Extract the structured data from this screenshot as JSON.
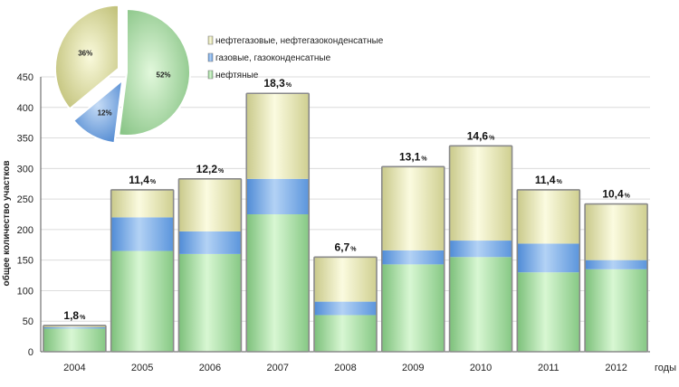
{
  "chart_data": [
    {
      "type": "bar",
      "stacked": true,
      "categories": [
        "2004",
        "2005",
        "2006",
        "2007",
        "2008",
        "2009",
        "2010",
        "2011",
        "2012"
      ],
      "xlabel": "годы",
      "ylabel": "общее количество участков",
      "ylim": [
        0,
        450
      ],
      "yticks": [
        0,
        50,
        100,
        150,
        200,
        250,
        300,
        350,
        400,
        450
      ],
      "grid": true,
      "series": [
        {
          "name": "нефтяные",
          "color": "#a8e6a0",
          "values": [
            38,
            165,
            160,
            225,
            60,
            143,
            155,
            130,
            135
          ]
        },
        {
          "name": "газовые, газоконденсатные",
          "color": "#7aaee8",
          "values": [
            2,
            55,
            37,
            58,
            22,
            23,
            27,
            47,
            15
          ]
        },
        {
          "name": "нефтегазовые, нефтегазоконденсатные",
          "color": "#e6e6aa",
          "values": [
            3,
            45,
            86,
            140,
            73,
            137,
            155,
            88,
            92
          ]
        }
      ],
      "bar_labels": [
        {
          "number": "1,8",
          "unit": "%"
        },
        {
          "number": "11,4",
          "unit": "%"
        },
        {
          "number": "12,2",
          "unit": "%"
        },
        {
          "number": "18,3",
          "unit": "%"
        },
        {
          "number": "6,7",
          "unit": "%"
        },
        {
          "number": "13,1",
          "unit": "%"
        },
        {
          "number": "14,6",
          "unit": "%"
        },
        {
          "number": "11,4",
          "unit": "%"
        },
        {
          "number": "10,4",
          "unit": "%"
        }
      ]
    },
    {
      "type": "pie",
      "slices": [
        {
          "name": "нефтяные",
          "value": 52,
          "label": "52%",
          "color": "#a8e6a0",
          "exploded": false
        },
        {
          "name": "газовые, газоконденсатные",
          "value": 12,
          "label": "12%",
          "color": "#7aaee8",
          "exploded": true
        },
        {
          "name": "нефтегазовые, нефтегазоконденсатные",
          "value": 36,
          "label": "36%",
          "color": "#e6e6aa",
          "exploded": true
        }
      ]
    }
  ],
  "legend": {
    "placement": "top-center",
    "items": [
      {
        "label": "нефтегазовые, нефтегазоконденсатные",
        "color": "#e6e6aa"
      },
      {
        "label": "газовые, газоконденсатные",
        "color": "#7aaee8"
      },
      {
        "label": "нефтяные",
        "color": "#a8e6a0"
      }
    ]
  }
}
